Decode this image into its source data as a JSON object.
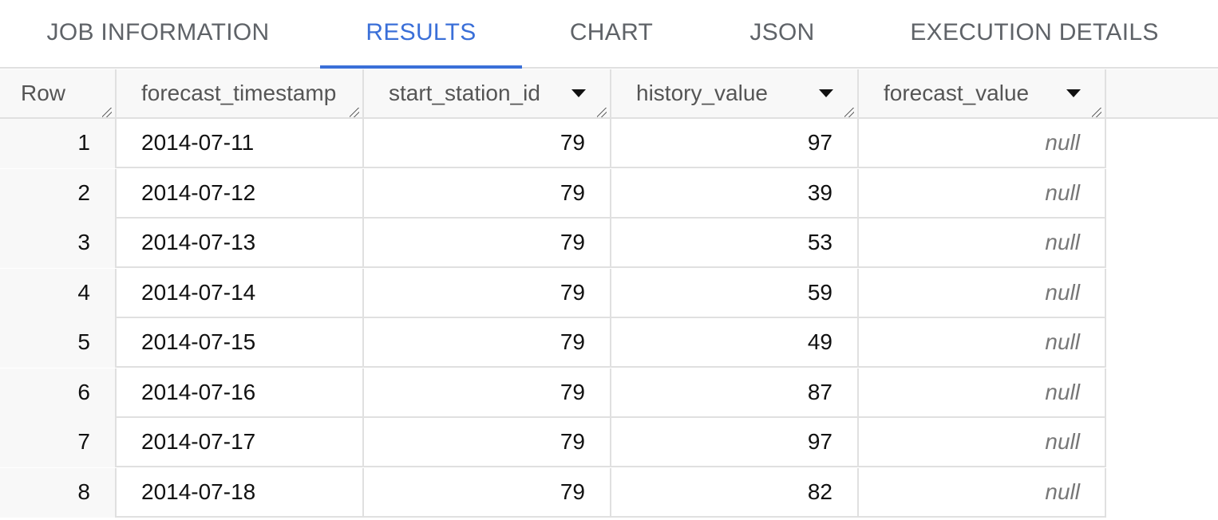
{
  "tabs": [
    {
      "label": "JOB INFORMATION",
      "active": false
    },
    {
      "label": "RESULTS",
      "active": true
    },
    {
      "label": "CHART",
      "active": false
    },
    {
      "label": "JSON",
      "active": false
    },
    {
      "label": "EXECUTION DETAILS",
      "active": false
    }
  ],
  "accent_color": "#3a6fd8",
  "columns": [
    "Row",
    "forecast_timestamp",
    "start_station_id",
    "history_value",
    "forecast_value"
  ],
  "rows": [
    {
      "row": "1",
      "forecast_timestamp": "2014-07-11",
      "start_station_id": "79",
      "history_value": "97",
      "forecast_value": "null"
    },
    {
      "row": "2",
      "forecast_timestamp": "2014-07-12",
      "start_station_id": "79",
      "history_value": "39",
      "forecast_value": "null"
    },
    {
      "row": "3",
      "forecast_timestamp": "2014-07-13",
      "start_station_id": "79",
      "history_value": "53",
      "forecast_value": "null"
    },
    {
      "row": "4",
      "forecast_timestamp": "2014-07-14",
      "start_station_id": "79",
      "history_value": "59",
      "forecast_value": "null"
    },
    {
      "row": "5",
      "forecast_timestamp": "2014-07-15",
      "start_station_id": "79",
      "history_value": "49",
      "forecast_value": "null"
    },
    {
      "row": "6",
      "forecast_timestamp": "2014-07-16",
      "start_station_id": "79",
      "history_value": "87",
      "forecast_value": "null"
    },
    {
      "row": "7",
      "forecast_timestamp": "2014-07-17",
      "start_station_id": "79",
      "history_value": "97",
      "forecast_value": "null"
    },
    {
      "row": "8",
      "forecast_timestamp": "2014-07-18",
      "start_station_id": "79",
      "history_value": "82",
      "forecast_value": "null"
    }
  ]
}
